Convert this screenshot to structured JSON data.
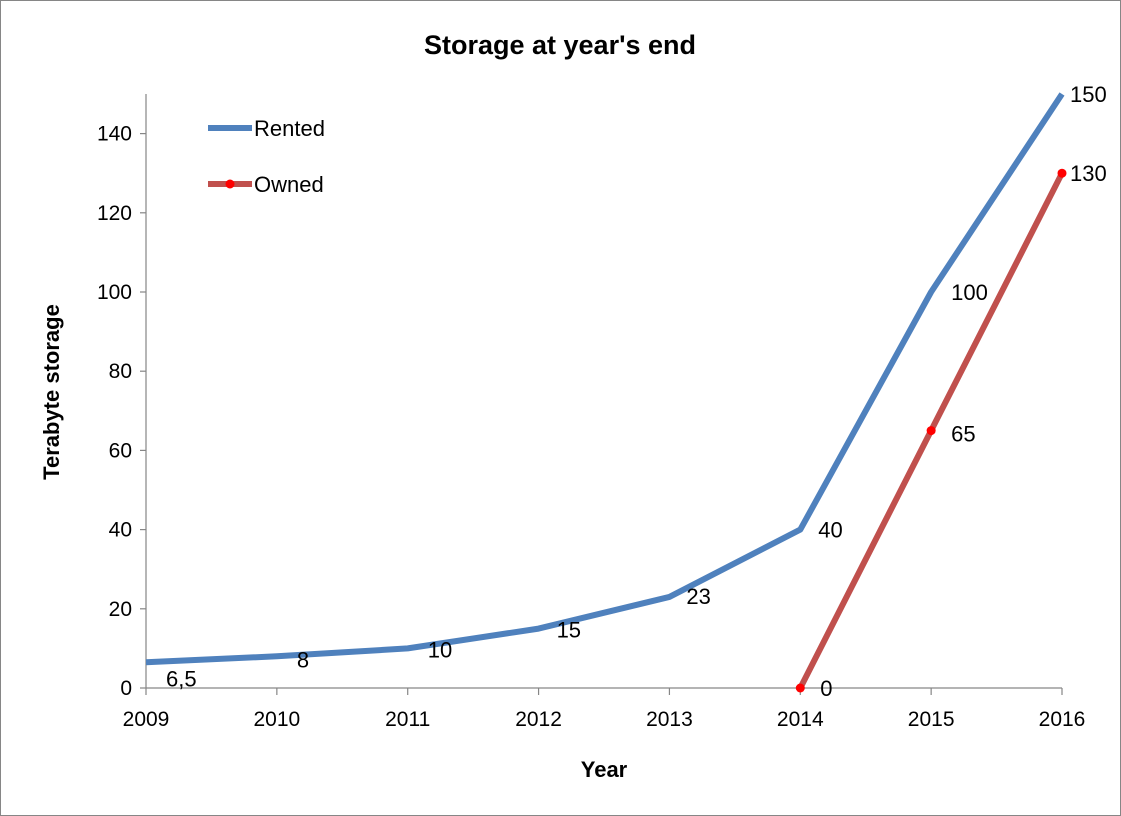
{
  "chart_data": {
    "type": "line",
    "title": "Storage at year's end",
    "xlabel": "Year",
    "ylabel": "Terabyte storage",
    "categories": [
      "2009",
      "2010",
      "2011",
      "2012",
      "2013",
      "2014",
      "2015",
      "2016"
    ],
    "ylim": [
      0,
      150
    ],
    "yticks": [
      "0",
      "20",
      "40",
      "60",
      "80",
      "100",
      "120",
      "140"
    ],
    "grid": false,
    "legend": "top-left",
    "series": [
      {
        "name": "Rented",
        "color": "#4F81BD",
        "markers": false,
        "values": [
          6.5,
          8,
          10,
          15,
          23,
          40,
          100,
          150
        ],
        "labels": [
          "6,5",
          "8",
          "10",
          "15",
          "23",
          "40",
          "100",
          "150"
        ]
      },
      {
        "name": "Owned",
        "color": "#C0504D",
        "marker_color": "#FF0000",
        "markers": true,
        "values": [
          null,
          null,
          null,
          null,
          null,
          0,
          65,
          130
        ],
        "labels": [
          "",
          "",
          "",
          "",
          "",
          "0",
          "65",
          "130"
        ]
      }
    ]
  }
}
